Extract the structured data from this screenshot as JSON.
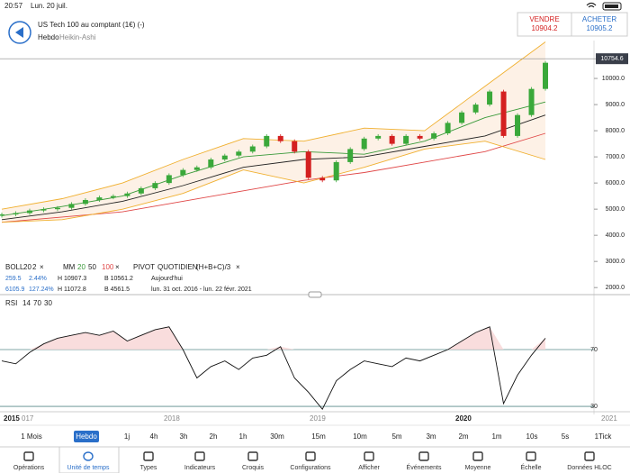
{
  "status": {
    "time": "20:57",
    "date": "Lun. 20 juil."
  },
  "header": {
    "title": "US Tech 100 au comptant (1€) (-)",
    "timeframe": "Hebdo",
    "chart_style": "Heikin-Ashi",
    "sell": {
      "label": "VENDRE",
      "price": "10904.2"
    },
    "buy": {
      "label": "ACHETER",
      "price": "10905.2"
    }
  },
  "price_chart": {
    "type": "candlestick",
    "ylim": [
      1800,
      11450
    ],
    "yticks": [
      {
        "value": 10000,
        "label": "10000.0"
      },
      {
        "value": 9000,
        "label": "9000.0"
      },
      {
        "value": 8000,
        "label": "8000.0"
      },
      {
        "value": 7000,
        "label": "7000.0"
      },
      {
        "value": 6000,
        "label": "6000.0"
      },
      {
        "value": 5000,
        "label": "5000.0"
      },
      {
        "value": 4000,
        "label": "4000.0"
      },
      {
        "value": 3000,
        "label": "3000.0"
      },
      {
        "value": 2000,
        "label": "2000.0"
      }
    ],
    "current_price": 10754.6,
    "current_price_label": "10754.6",
    "up_color": "#3aa83a",
    "down_color": "#d42020",
    "values": [
      4800,
      4850,
      4950,
      5000,
      5050,
      5200,
      5350,
      5450,
      5500,
      5600,
      5800,
      6000,
      6300,
      6500,
      6600,
      6900,
      7050,
      7200,
      7400,
      7800,
      7600,
      7200,
      6200,
      6100,
      6800,
      7300,
      7700,
      7800,
      7500,
      7800,
      7700,
      7900,
      8300,
      8700,
      9000,
      9500,
      7800,
      8600,
      9600,
      10600
    ],
    "lines": [
      {
        "name": "MM 20",
        "color": "#3a9a3a",
        "values": [
          4750,
          5100,
          5500,
          6300,
          7000,
          7200,
          7100,
          7600,
          8500,
          9100
        ]
      },
      {
        "name": "MM 50",
        "color": "#222222",
        "values": [
          4600,
          4900,
          5300,
          5900,
          6600,
          6900,
          7000,
          7400,
          7800,
          8600
        ]
      },
      {
        "name": "MM 100",
        "color": "#e04848",
        "values": [
          4500,
          4700,
          4900,
          5300,
          5700,
          6100,
          6400,
          6800,
          7200,
          7900
        ]
      },
      {
        "name": "BOLL upper",
        "color": "#f0b030",
        "values": [
          5000,
          5400,
          6000,
          6900,
          7700,
          7600,
          8100,
          8000,
          9700,
          11400
        ]
      },
      {
        "name": "BOLL lower",
        "color": "#f0b030",
        "values": [
          4500,
          4600,
          5000,
          5600,
          6500,
          6000,
          6600,
          7300,
          7600,
          6900
        ]
      }
    ]
  },
  "legend": {
    "row1": [
      "BOLL",
      "20",
      "2",
      "×",
      "MM",
      "20",
      "50",
      "100",
      "×",
      "PIVOT",
      "QUOTIDIEN",
      "(H+B+C)/3",
      "×"
    ],
    "row2": [
      "259.5",
      "2.44%",
      "H 10907.3",
      "B 10561.2",
      "Aujourd'hui"
    ],
    "row3": [
      "6105.9",
      "127.24%",
      "H 11072.8",
      "B 4561.5",
      "lun. 31 oct. 2016 - lun. 22 févr. 2021"
    ]
  },
  "rsi": {
    "type": "line",
    "label": "RSI",
    "params": [
      "14",
      "70",
      "30"
    ],
    "ylim": [
      27.5,
      103.6
    ],
    "yticks": [
      70,
      30
    ],
    "color": "#111111",
    "values": [
      62,
      60,
      68,
      74,
      78,
      80,
      82,
      80,
      83,
      76,
      80,
      84,
      86,
      70,
      50,
      58,
      62,
      56,
      64,
      66,
      72,
      50,
      40,
      28,
      48,
      56,
      62,
      60,
      58,
      64,
      62,
      66,
      70,
      76,
      82,
      86,
      32,
      52,
      66,
      78
    ]
  },
  "time_axis": [
    "2015",
    "017",
    "2018",
    "2019",
    "2020",
    "2021"
  ],
  "timeframes": [
    "1 Mois",
    "Hebdo",
    "1j",
    "4h",
    "3h",
    "2h",
    "1h",
    "30m",
    "15m",
    "10m",
    "5m",
    "3m",
    "2m",
    "1m",
    "10s",
    "5s",
    "1Tick"
  ],
  "toolbar": [
    "Opérations",
    "Unité de temps",
    "Types",
    "Indicateurs",
    "Croquis",
    "Configurations",
    "Afficher",
    "Événements",
    "Moyenne",
    "Échelle",
    "Données HLOC"
  ]
}
